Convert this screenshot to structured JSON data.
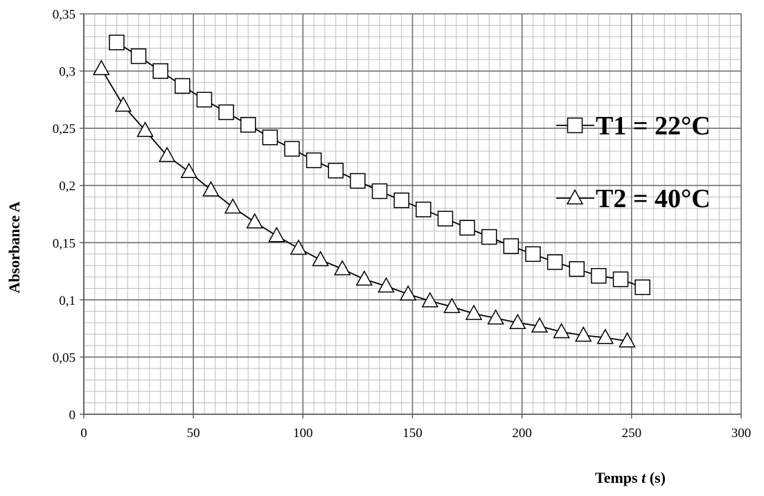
{
  "chart_data": {
    "type": "line",
    "title": "",
    "xlabel_prefix": "Temps ",
    "xlabel_var": "t",
    "xlabel_suffix": " (s)",
    "ylabel": "Absorbance A",
    "xlim": [
      0,
      300
    ],
    "ylim": [
      0,
      0.35
    ],
    "x_ticks": [
      0,
      50,
      100,
      150,
      200,
      250,
      300
    ],
    "y_ticks": [
      0,
      0.05,
      0.1,
      0.15,
      0.2,
      0.25,
      0.3,
      0.35
    ],
    "x_tick_labels": [
      "0",
      "50",
      "100",
      "150",
      "200",
      "250",
      "300"
    ],
    "y_tick_labels": [
      "0",
      "0,05",
      "0,1",
      "0,15",
      "0,2",
      "0,25",
      "0,3",
      "0,35"
    ],
    "grid": true,
    "legend_position": "right",
    "series": [
      {
        "name": "T1 = 22°C",
        "marker": "square",
        "color": "#000000",
        "x": [
          15,
          25,
          35,
          45,
          55,
          65,
          75,
          85,
          95,
          105,
          115,
          125,
          135,
          145,
          155,
          165,
          175,
          185,
          195,
          205,
          215,
          225,
          235,
          245,
          255
        ],
        "y": [
          0.325,
          0.313,
          0.3,
          0.287,
          0.275,
          0.264,
          0.253,
          0.242,
          0.232,
          0.222,
          0.213,
          0.204,
          0.195,
          0.187,
          0.179,
          0.171,
          0.163,
          0.155,
          0.147,
          0.14,
          0.133,
          0.127,
          0.121,
          0.118,
          0.111
        ]
      },
      {
        "name": "T2 = 40°C",
        "marker": "triangle",
        "color": "#000000",
        "x": [
          8,
          18,
          28,
          38,
          48,
          58,
          68,
          78,
          88,
          98,
          108,
          118,
          128,
          138,
          148,
          158,
          168,
          178,
          188,
          198,
          208,
          218,
          228,
          238,
          248
        ],
        "y": [
          0.302,
          0.27,
          0.248,
          0.226,
          0.212,
          0.196,
          0.181,
          0.168,
          0.156,
          0.145,
          0.135,
          0.127,
          0.118,
          0.112,
          0.105,
          0.099,
          0.094,
          0.088,
          0.084,
          0.08,
          0.077,
          0.072,
          0.069,
          0.067,
          0.064
        ]
      }
    ]
  }
}
